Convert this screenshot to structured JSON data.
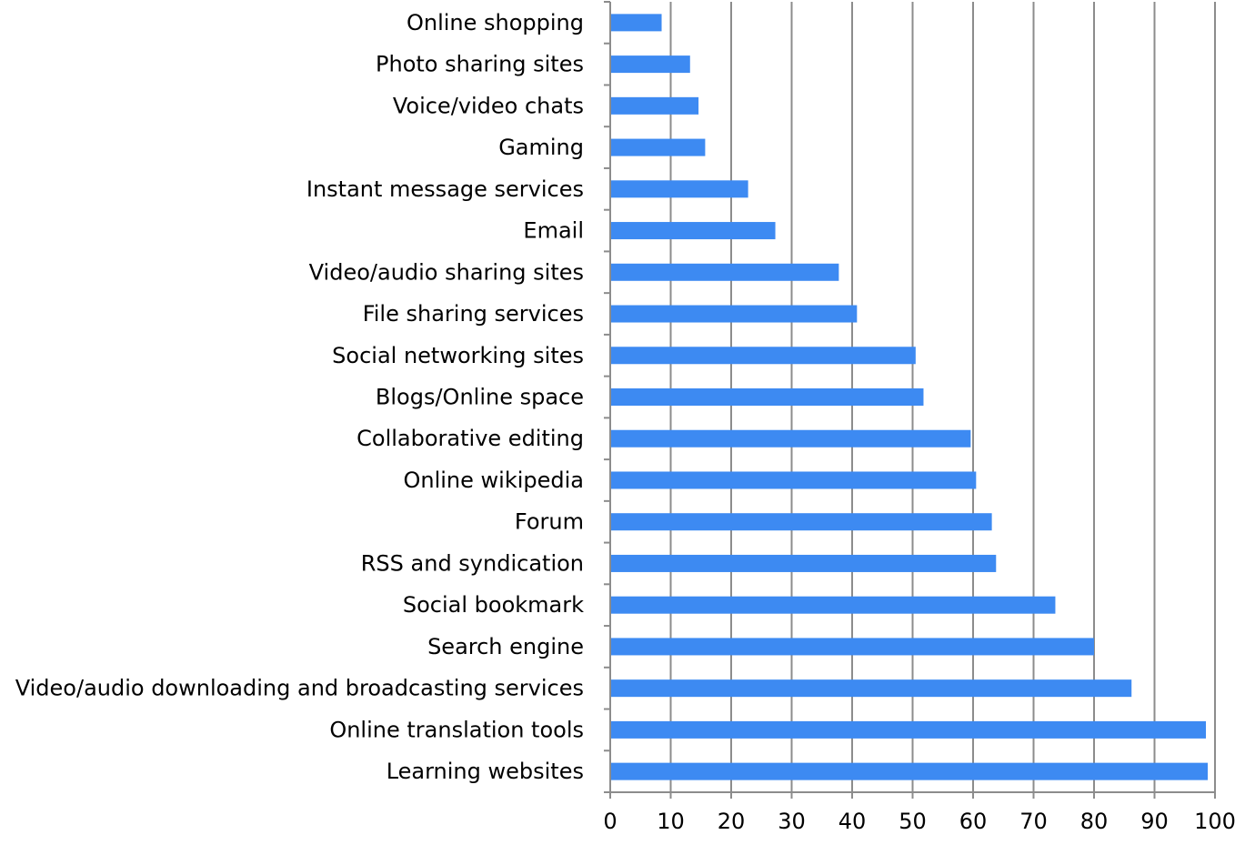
{
  "chart_data": {
    "type": "bar",
    "orientation": "horizontal",
    "title": "",
    "xlabel": "",
    "ylabel": "",
    "xlim": [
      0,
      100
    ],
    "xticks": [
      0,
      10,
      20,
      30,
      40,
      50,
      60,
      70,
      80,
      90,
      100
    ],
    "grid": "vertical-major",
    "legend": "none",
    "bar_color": "#3d8af2",
    "grid_color": "#8c8c8c",
    "categories": [
      "Online shopping",
      "Photo sharing sites",
      "Voice/video chats",
      "Gaming",
      "Instant message services",
      "Email",
      "Video/audio sharing sites",
      "File sharing services",
      "Social networking sites",
      "Blogs/Online space",
      "Collaborative editing",
      "Online wikipedia",
      "Forum",
      "RSS and syndication",
      "Social bookmark",
      "Search engine",
      "Video/audio downloading and broadcasting services",
      "Online translation tools",
      "Learning websites"
    ],
    "values": [
      8.5,
      13.2,
      14.6,
      15.7,
      22.8,
      27.3,
      37.8,
      40.8,
      50.5,
      51.8,
      59.6,
      60.5,
      63.1,
      63.8,
      73.6,
      80.0,
      86.2,
      98.5,
      98.8
    ]
  }
}
